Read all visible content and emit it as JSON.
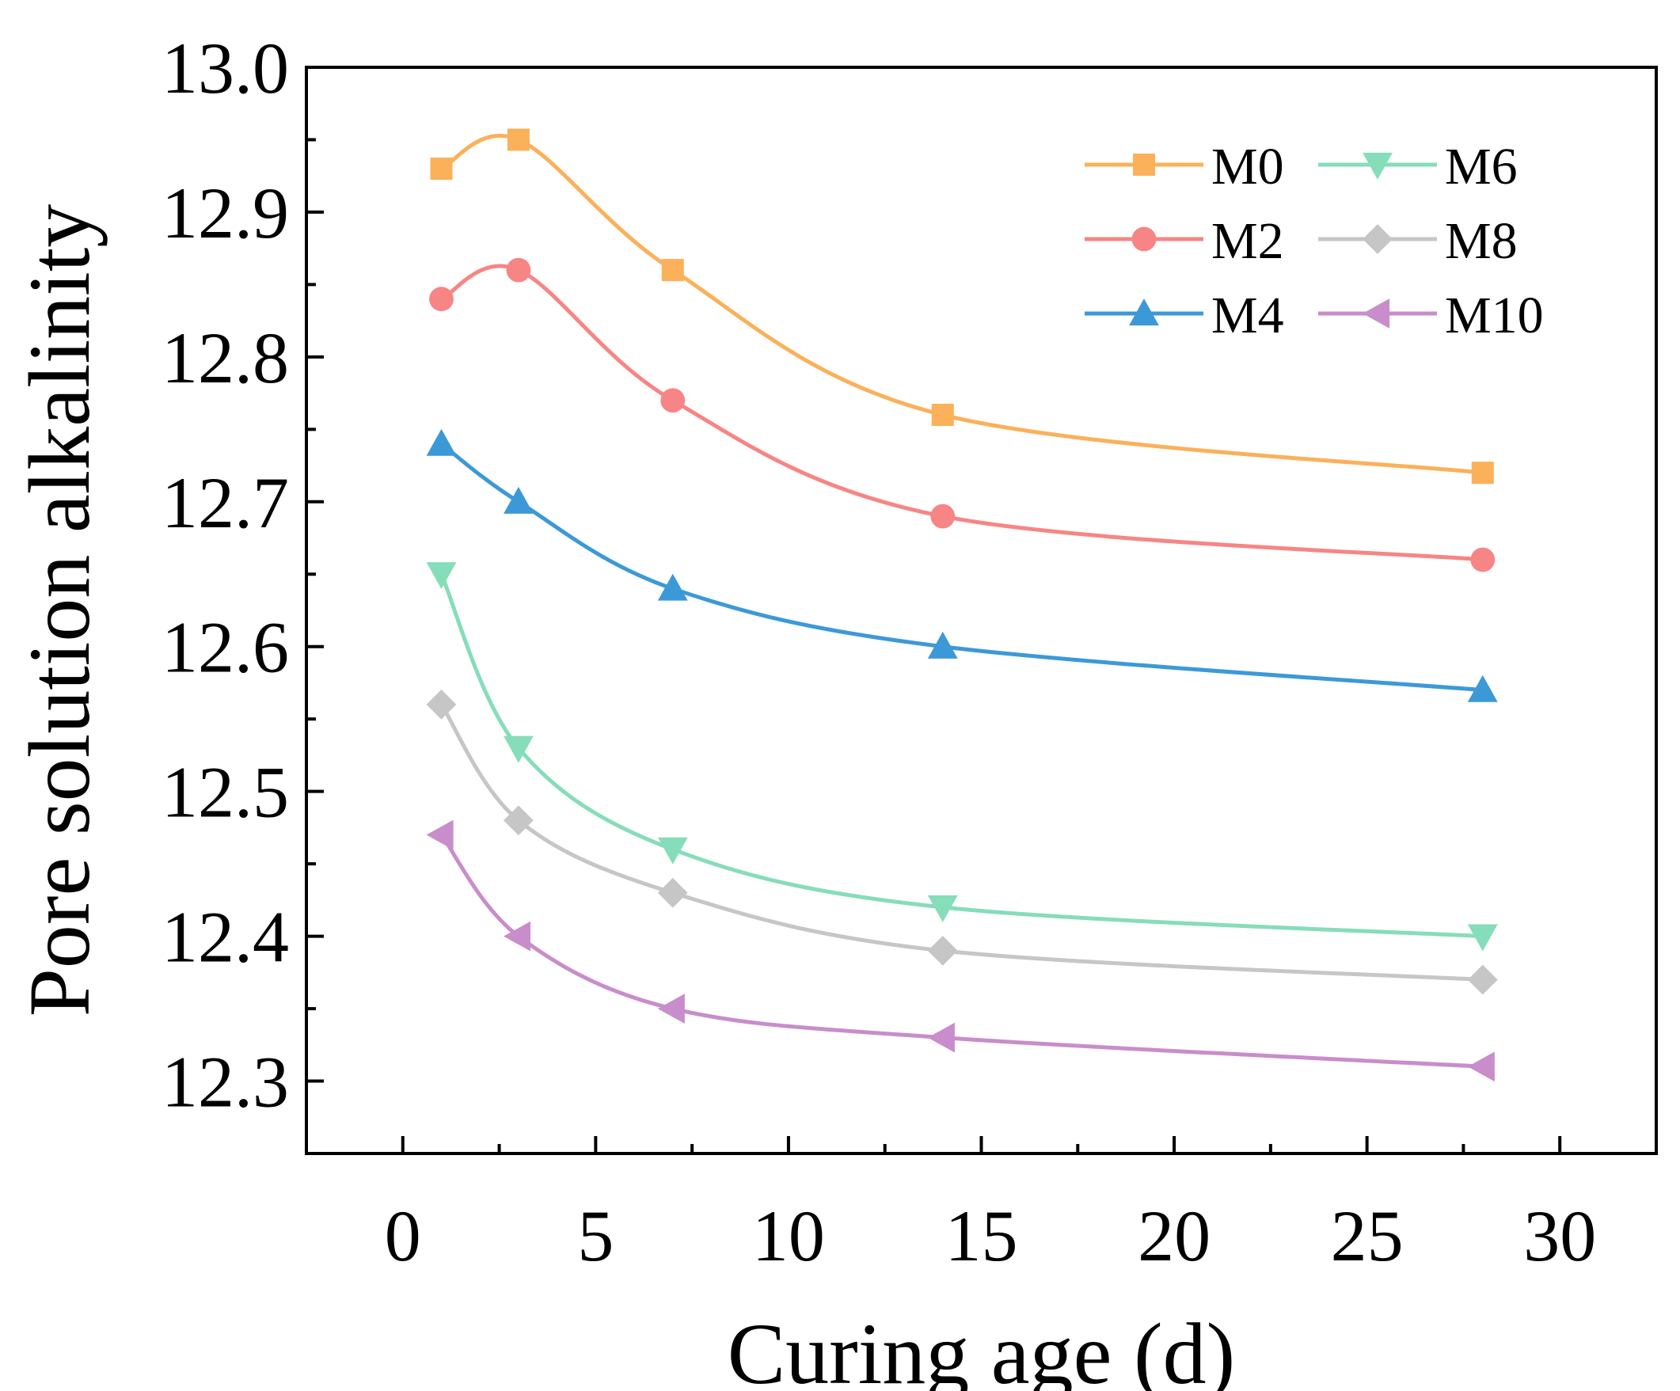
{
  "chart_data": {
    "type": "line",
    "title": "",
    "xlabel": "Curing age (d)",
    "ylabel": "Pore solution alkalinity",
    "xlim": [
      -2.5,
      32.5
    ],
    "ylim": [
      12.25,
      13.0
    ],
    "xticks": [
      0,
      5,
      10,
      15,
      20,
      25,
      30
    ],
    "xtick_labels": [
      "0",
      "5",
      "10",
      "15",
      "20",
      "25",
      "30"
    ],
    "yticks": [
      12.3,
      12.4,
      12.5,
      12.6,
      12.7,
      12.8,
      12.9,
      13.0
    ],
    "ytick_labels": [
      "12.3",
      "12.4",
      "12.5",
      "12.6",
      "12.7",
      "12.8",
      "12.9",
      "13.0"
    ],
    "grid": false,
    "legend_position": "top-right",
    "x": [
      1,
      3,
      7,
      14,
      28
    ],
    "series": [
      {
        "name": "M0",
        "values": [
          12.93,
          12.95,
          12.86,
          12.76,
          12.72
        ],
        "color": "#FBB05A",
        "marker": "square"
      },
      {
        "name": "M2",
        "values": [
          12.84,
          12.86,
          12.77,
          12.69,
          12.66
        ],
        "color": "#F78585",
        "marker": "circle"
      },
      {
        "name": "M4",
        "values": [
          12.74,
          12.7,
          12.64,
          12.6,
          12.57
        ],
        "color": "#3C99D8",
        "marker": "triangle-up"
      },
      {
        "name": "M6",
        "values": [
          12.65,
          12.53,
          12.46,
          12.42,
          12.4
        ],
        "color": "#86DDB9",
        "marker": "triangle-down"
      },
      {
        "name": "M8",
        "values": [
          12.56,
          12.48,
          12.43,
          12.39,
          12.37
        ],
        "color": "#C6C6C6",
        "marker": "diamond"
      },
      {
        "name": "M10",
        "values": [
          12.47,
          12.4,
          12.35,
          12.33,
          12.31
        ],
        "color": "#C98DCB",
        "marker": "triangle-left"
      }
    ]
  }
}
